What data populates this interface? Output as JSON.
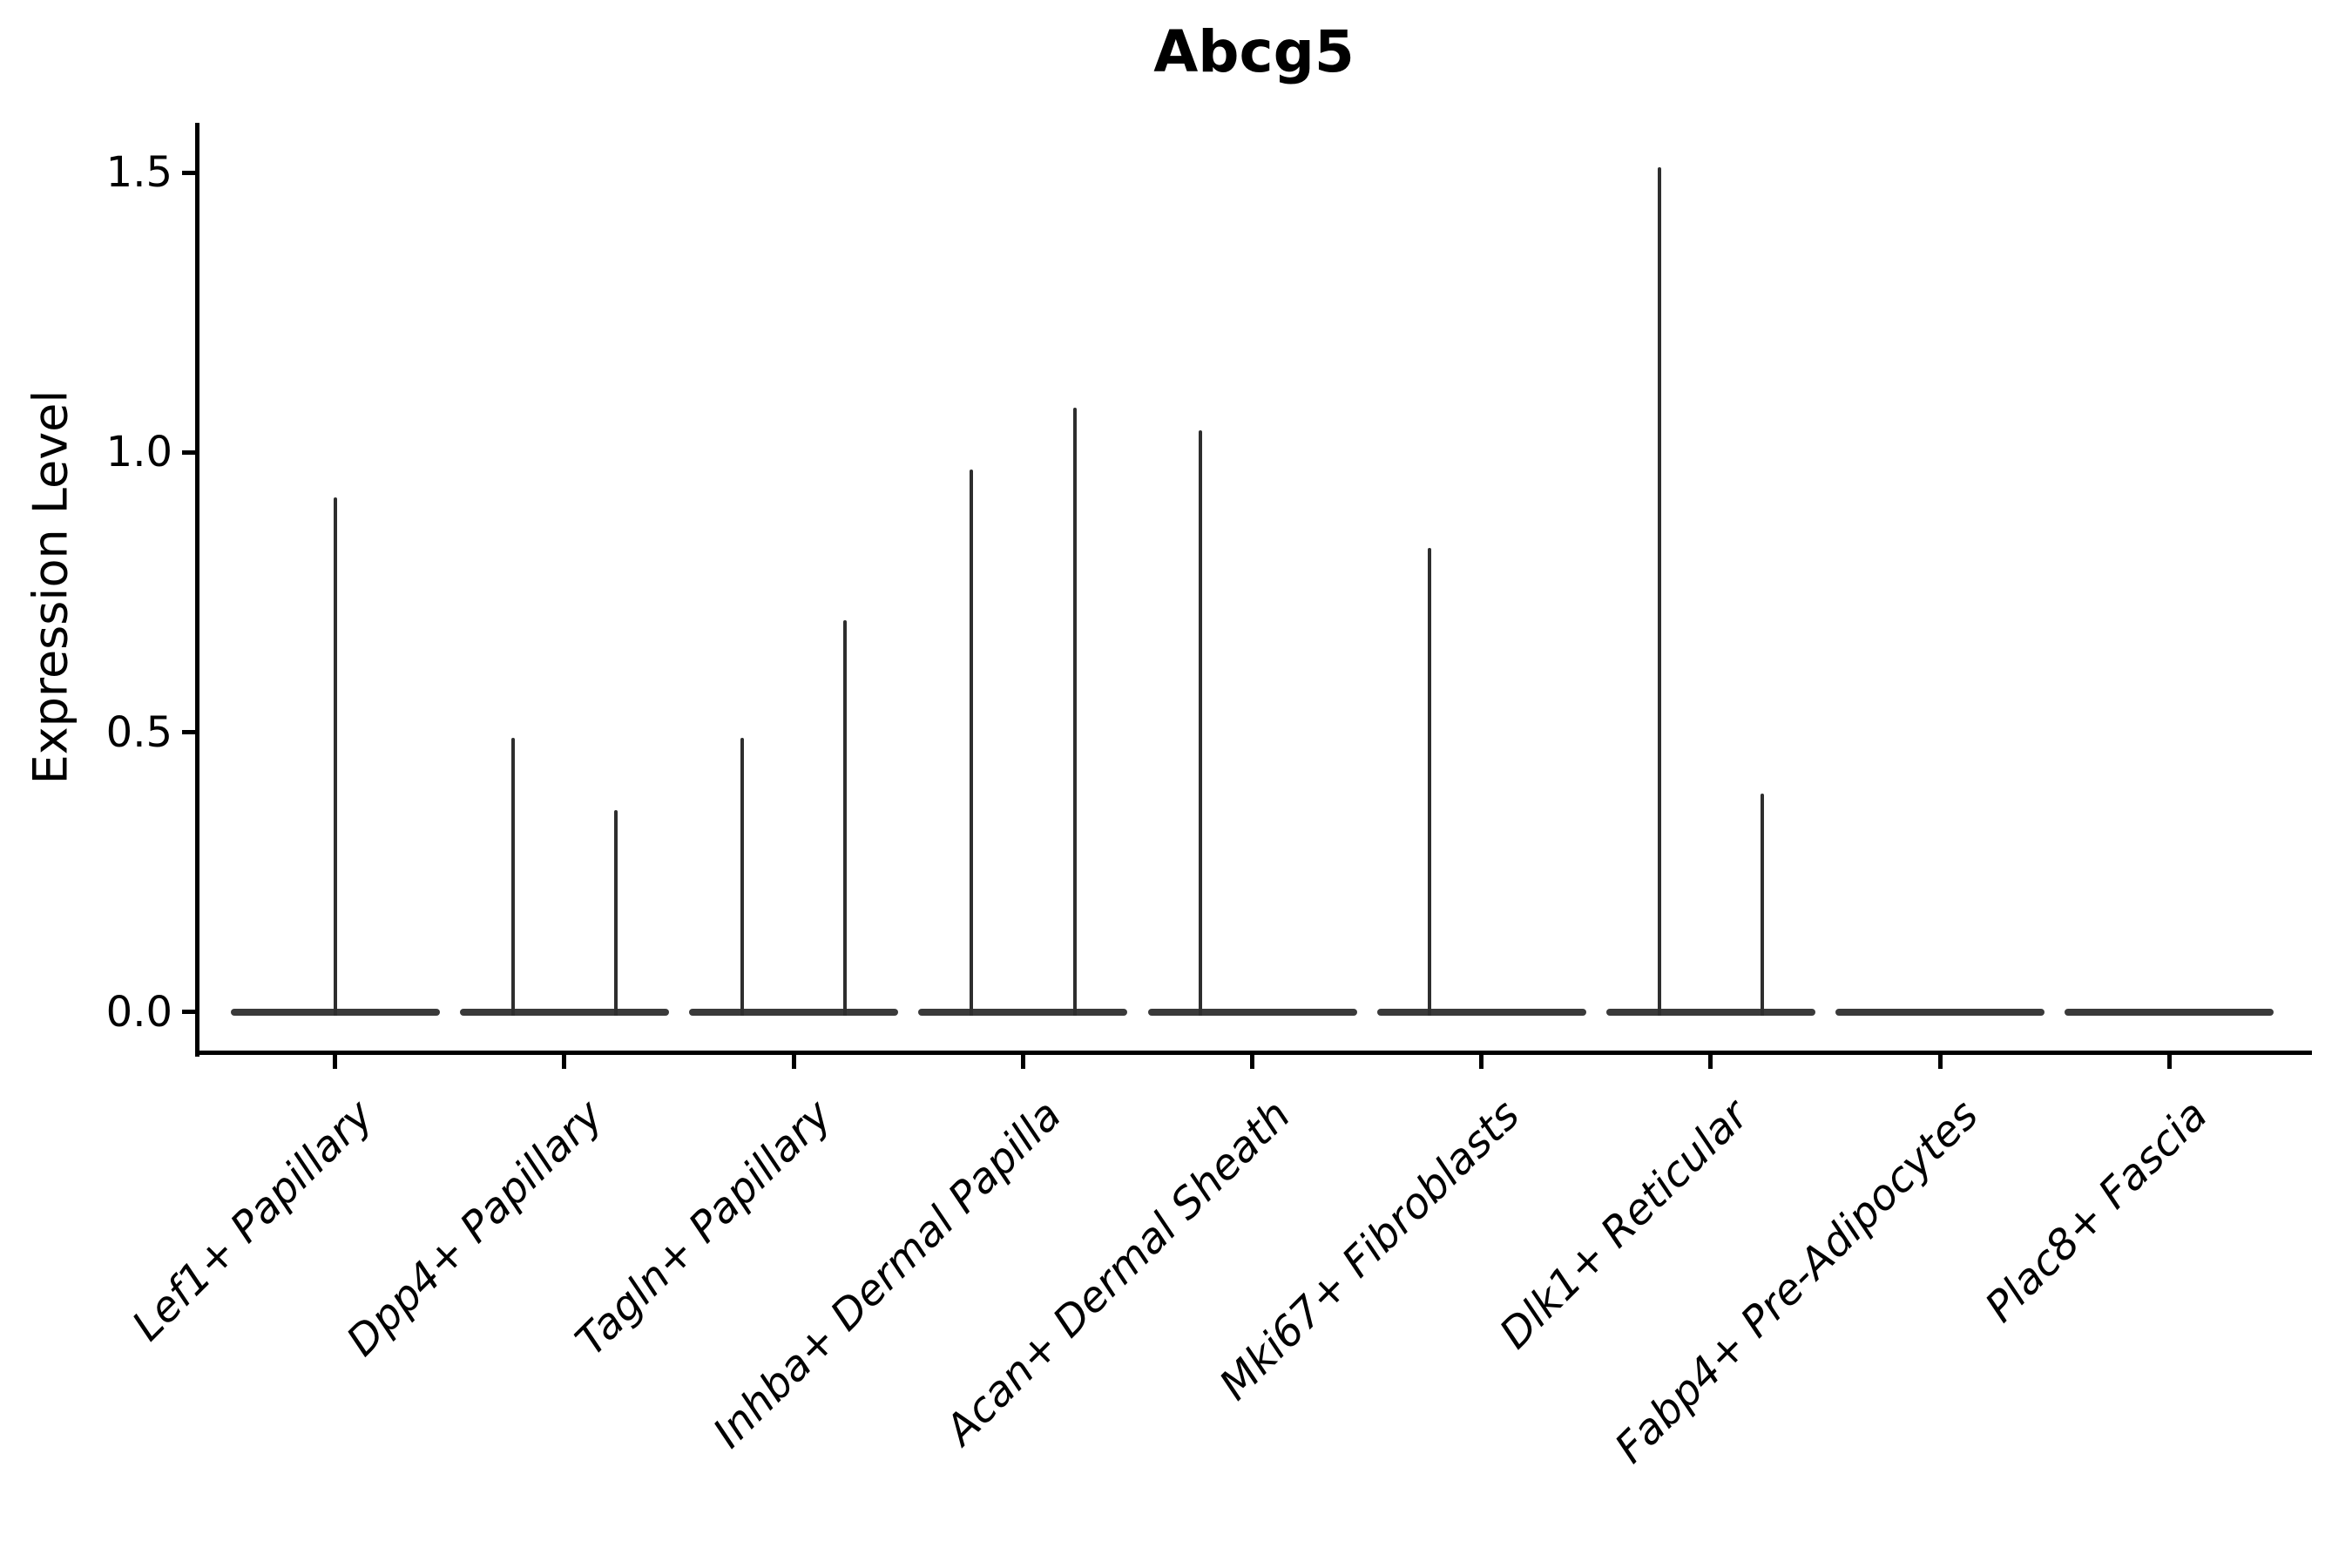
{
  "figure": {
    "background": "#ffffff"
  },
  "chart_data": {
    "type": "violin",
    "title": "Abcg5",
    "ylabel": "Expression Level",
    "xlabel": "",
    "grid": "off",
    "legend": "none",
    "baseline_value": 0,
    "ylim": [
      0,
      1.66
    ],
    "yticks": [
      {
        "label": "0.0",
        "value": 0.0
      },
      {
        "label": "0.5",
        "value": 0.5
      },
      {
        "label": "1.0",
        "value": 1.0
      },
      {
        "label": "1.5",
        "value": 1.5
      }
    ],
    "categories": [
      "Lef1+ Papillary",
      "Dpp4+ Papillary",
      "Tagln+ Papillary",
      "Inhba+ Dermal Papilla",
      "Acan+ Dermal Sheath",
      "Mki67+ Fibroblasts",
      "Dlk1+ Reticular",
      "Fabp4+ Pre-Adipocytes",
      "Plac8+ Fascia"
    ],
    "violins": [
      {
        "category": "Lef1+ Papillary",
        "spikes": [
          {
            "position": "center",
            "offset": 0,
            "max": 0.92
          }
        ]
      },
      {
        "category": "Dpp4+ Papillary",
        "spikes": [
          {
            "position": "left",
            "offset": -0.225,
            "max": 0.49
          },
          {
            "position": "right",
            "offset": 0.225,
            "max": 0.36
          }
        ]
      },
      {
        "category": "Tagln+ Papillary",
        "spikes": [
          {
            "position": "left",
            "offset": -0.225,
            "max": 0.49
          },
          {
            "position": "right",
            "offset": 0.225,
            "max": 0.7
          }
        ]
      },
      {
        "category": "Inhba+ Dermal Papilla",
        "spikes": [
          {
            "position": "left",
            "offset": -0.225,
            "max": 0.97
          },
          {
            "position": "right",
            "offset": 0.225,
            "max": 1.08
          }
        ]
      },
      {
        "category": "Acan+ Dermal Sheath",
        "spikes": [
          {
            "position": "left",
            "offset": -0.225,
            "max": 1.04
          }
        ]
      },
      {
        "category": "Mki67+ Fibroblasts",
        "spikes": [
          {
            "position": "left",
            "offset": -0.225,
            "max": 0.83
          }
        ]
      },
      {
        "category": "Dlk1+ Reticular",
        "spikes": [
          {
            "position": "left",
            "offset": -0.225,
            "max": 1.51
          },
          {
            "position": "right",
            "offset": 0.225,
            "max": 0.39
          }
        ]
      },
      {
        "category": "Fabp4+ Pre-Adipocytes",
        "spikes": []
      },
      {
        "category": "Plac8+ Fascia",
        "spikes": []
      }
    ],
    "colors": {
      "violin_line": "#2e2e2e",
      "violin_base_fill": "#3a3a3a",
      "axis": "#000000",
      "text": "#000000"
    }
  }
}
